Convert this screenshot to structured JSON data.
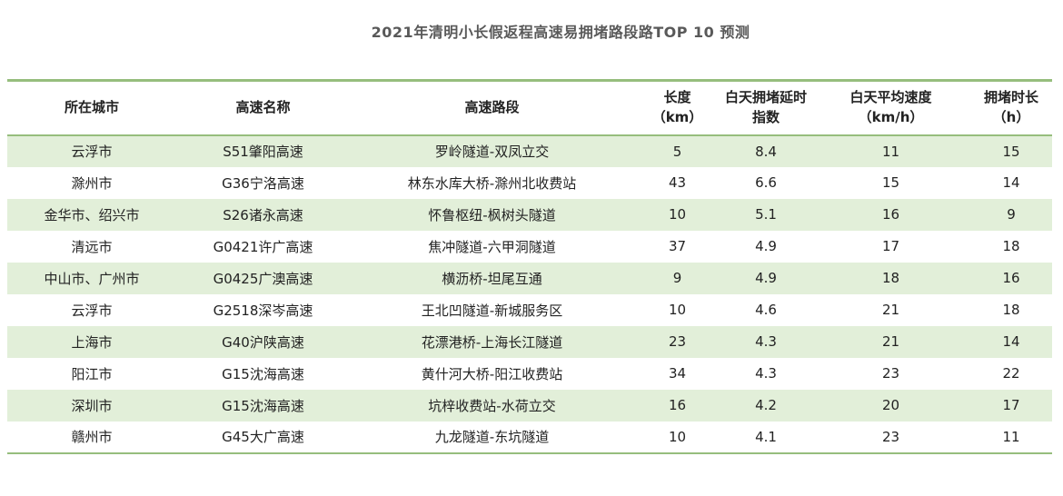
{
  "title": "2021年清明小长假返程高速易拥堵路段路TOP 10 预测",
  "colors": {
    "accent_green": "#96be7d",
    "row_stripe": "#e2efd9",
    "title_text": "#595959",
    "body_text": "#222222"
  },
  "table": {
    "header_display": [
      "所在城市",
      "高速名称",
      "高速路段",
      "长度\n（km）",
      "白天拥堵延时\n指数",
      "白天平均速度\n（km/h）",
      "拥堵时长\n（h）"
    ]
  },
  "chart_data": {
    "type": "table",
    "title": "2021年清明小长假返程高速易拥堵路段路TOP 10 预测",
    "columns": [
      "所在城市",
      "高速名称",
      "高速路段",
      "长度（km）",
      "白天拥堵延时指数",
      "白天平均速度（km/h）",
      "拥堵时长（h）"
    ],
    "rows": [
      [
        "云浮市",
        "S51肇阳高速",
        "罗岭隧道-双凤立交",
        5,
        8.4,
        11,
        15
      ],
      [
        "滁州市",
        "G36宁洛高速",
        "林东水库大桥-滁州北收费站",
        43,
        6.6,
        15,
        14
      ],
      [
        "金华市、绍兴市",
        "S26诸永高速",
        "怀鲁枢纽-枫树头隧道",
        10,
        5.1,
        16,
        9
      ],
      [
        "清远市",
        "G0421许广高速",
        "焦冲隧道-六甲洞隧道",
        37,
        4.9,
        17,
        18
      ],
      [
        "中山市、广州市",
        "G0425广澳高速",
        "横沥桥-坦尾互通",
        9,
        4.9,
        18,
        16
      ],
      [
        "云浮市",
        "G2518深岑高速",
        "王北凹隧道-新城服务区",
        10,
        4.6,
        21,
        18
      ],
      [
        "上海市",
        "G40沪陕高速",
        "花漂港桥-上海长江隧道",
        23,
        4.3,
        21,
        14
      ],
      [
        "阳江市",
        "G15沈海高速",
        "黄什河大桥-阳江收费站",
        34,
        4.3,
        23,
        22
      ],
      [
        "深圳市",
        "G15沈海高速",
        "坑梓收费站-水荷立交",
        16,
        4.2,
        20,
        17
      ],
      [
        "赣州市",
        "G45大广高速",
        "九龙隧道-东坑隧道",
        10,
        4.1,
        23,
        11
      ]
    ]
  }
}
